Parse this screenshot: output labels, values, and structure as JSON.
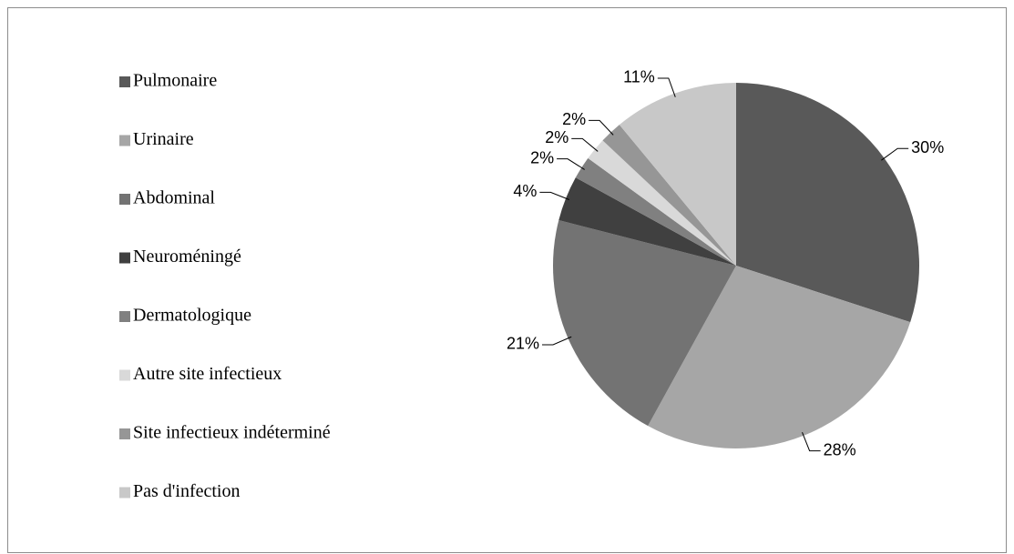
{
  "chart_data": {
    "type": "pie",
    "categories": [
      "Pulmonaire",
      "Urinaire",
      "Abdominal",
      "Neuroméningé",
      "Dermatologique",
      "Autre site infectieux",
      "Site infectieux indéterminé",
      "Pas d'infection"
    ],
    "values": [
      30,
      28,
      21,
      4,
      2,
      2,
      2,
      11
    ],
    "value_labels": [
      "30%",
      "28%",
      "21%",
      "4%",
      "2%",
      "2%",
      "2%",
      "11%"
    ],
    "colors": [
      "#595959",
      "#a6a6a6",
      "#737373",
      "#404040",
      "#808080",
      "#d9d9d9",
      "#969696",
      "#c8c8c8"
    ],
    "legend": "left"
  }
}
